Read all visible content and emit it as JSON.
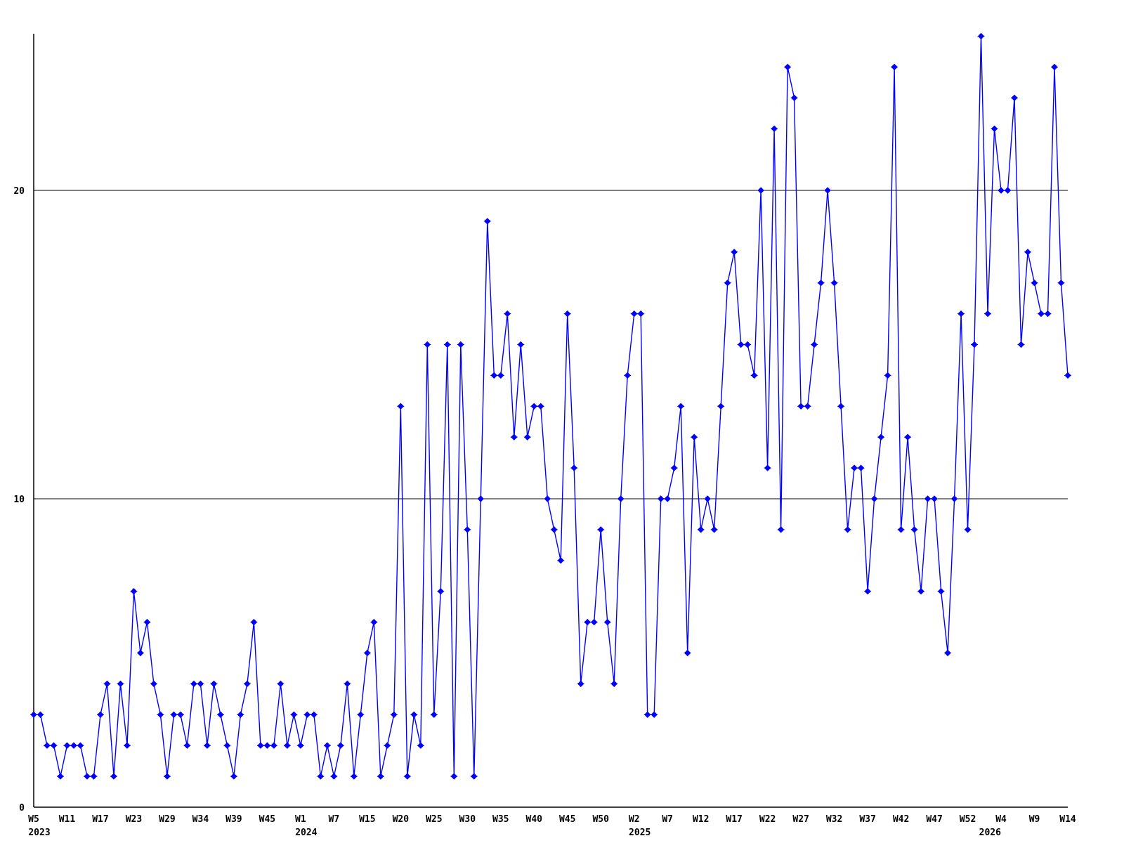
{
  "chart_data": {
    "type": "line",
    "title": "",
    "xlabel": "",
    "ylabel": "",
    "legend": null,
    "grid": "horizontal-only",
    "line_color": "#0000ff",
    "axis_color": "#000000",
    "background_color": "#ffffff",
    "marker": "diamond",
    "ylim": [
      0,
      25.2
    ],
    "ytick_values": [
      0,
      10,
      20
    ],
    "ytick_labels": [
      "0",
      "10",
      "20"
    ],
    "gridline_values": [
      10,
      20
    ],
    "x_tick_every_n_points": 5,
    "x_tick_labels": [
      "W5",
      "W11",
      "W17",
      "W23",
      "W29",
      "W34",
      "W39",
      "W45",
      "W1",
      "W7",
      "W15",
      "W20",
      "W25",
      "W30",
      "W35",
      "W40",
      "W45",
      "W50",
      "W2",
      "W7",
      "W12",
      "W17",
      "W22",
      "W27",
      "W32",
      "W37",
      "W42",
      "W47",
      "W52",
      "W4",
      "W9",
      "W14"
    ],
    "year_labels": [
      {
        "data_index": 0,
        "label": "2023"
      },
      {
        "data_index": 40,
        "label": "2024"
      },
      {
        "data_index": 90,
        "label": "2025"
      },
      {
        "data_index": 142.5,
        "label": "2026"
      }
    ],
    "values": [
      3,
      3,
      2,
      2,
      1,
      2,
      2,
      2,
      1,
      1,
      3,
      4,
      1,
      4,
      2,
      7,
      5,
      6,
      4,
      3,
      1,
      3,
      3,
      2,
      4,
      4,
      2,
      4,
      3,
      2,
      1,
      3,
      4,
      6,
      2,
      2,
      2,
      4,
      2,
      3,
      2,
      3,
      3,
      1,
      2,
      1,
      2,
      4,
      1,
      3,
      5,
      6,
      1,
      2,
      3,
      13,
      1,
      3,
      2,
      15,
      3,
      7,
      15,
      1,
      15,
      9,
      1,
      10,
      19,
      14,
      14,
      16,
      12,
      15,
      12,
      13,
      13,
      10,
      9,
      8,
      16,
      11,
      4,
      6,
      6,
      9,
      6,
      4,
      10,
      14,
      16,
      16,
      3,
      3,
      10,
      10,
      11,
      13,
      5,
      12,
      9,
      10,
      9,
      13,
      17,
      18,
      15,
      15,
      14,
      20,
      11,
      22,
      9,
      24,
      23,
      13,
      13,
      15,
      17,
      20,
      17,
      13,
      9,
      11,
      11,
      7,
      10,
      12,
      14,
      24,
      9,
      12,
      9,
      7,
      10,
      10,
      7,
      5,
      10,
      16,
      9,
      15,
      25,
      16,
      22,
      20,
      20,
      23,
      15,
      18,
      17,
      16,
      16,
      24,
      17,
      14
    ]
  },
  "layout_note": "weekly count time series, no title, no legend, black frame left/bottom, horizontal gridlines at 10 and 20"
}
